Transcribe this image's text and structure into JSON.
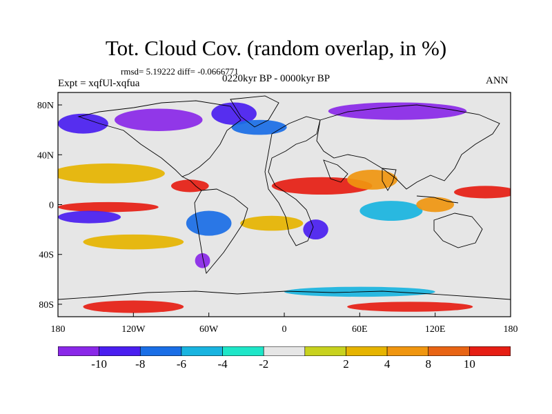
{
  "figure": {
    "title": "Tot. Cloud Cov. (random overlap, in %)",
    "stats": "rmsd= 5.19222 diff= -0.0666771",
    "experiment": "Expt = xqfUl-xqfua",
    "period": "0220kyr BP - 0000kyr BP",
    "season": "ANN"
  },
  "map": {
    "projection": "cylindrical-equidistant",
    "lon_range": [
      -180,
      180
    ],
    "lat_range": [
      -90,
      90
    ],
    "x_ticks": [
      {
        "value": -180,
        "label": "180"
      },
      {
        "value": -120,
        "label": "120W"
      },
      {
        "value": -60,
        "label": "60W"
      },
      {
        "value": 0,
        "label": "0"
      },
      {
        "value": 60,
        "label": "60E"
      },
      {
        "value": 120,
        "label": "120E"
      },
      {
        "value": 180,
        "label": "180"
      }
    ],
    "y_ticks": [
      {
        "value": 80,
        "label": "80N"
      },
      {
        "value": 40,
        "label": "40N"
      },
      {
        "value": 0,
        "label": "0"
      },
      {
        "value": -40,
        "label": "40S"
      },
      {
        "value": -80,
        "label": "80S"
      }
    ],
    "field_regions": [
      {
        "name": "arctic-canada-negative",
        "lon": -100,
        "lat": 68,
        "rlon": 35,
        "rlat": 9,
        "level": -10
      },
      {
        "name": "greenland-negative",
        "lon": -40,
        "lat": 73,
        "rlon": 18,
        "rlat": 9,
        "level": -8
      },
      {
        "name": "siberia-negative",
        "lon": 90,
        "lat": 75,
        "rlon": 55,
        "rlat": 7,
        "level": -10
      },
      {
        "name": "north-pacific-negative",
        "lon": -160,
        "lat": 65,
        "rlon": 20,
        "rlat": 8,
        "level": -8
      },
      {
        "name": "north-atlantic-blue",
        "lon": -20,
        "lat": 62,
        "rlon": 22,
        "rlat": 6,
        "level": -6
      },
      {
        "name": "east-pacific-subtropic-positive",
        "lon": -140,
        "lat": 25,
        "rlon": 45,
        "rlat": 8,
        "level": 4
      },
      {
        "name": "north-africa-positive",
        "lon": 30,
        "lat": 15,
        "rlon": 40,
        "rlat": 7,
        "level": 10
      },
      {
        "name": "arabia-positive",
        "lon": 70,
        "lat": 20,
        "rlon": 20,
        "rlat": 8,
        "level": 8
      },
      {
        "name": "caribbean-positive",
        "lon": -75,
        "lat": 15,
        "rlon": 15,
        "rlat": 5,
        "level": 10
      },
      {
        "name": "west-pacific-positive",
        "lon": 160,
        "lat": 10,
        "rlon": 25,
        "rlat": 5,
        "level": 10
      },
      {
        "name": "equatorial-pacific-positive",
        "lon": -140,
        "lat": -2,
        "rlon": 40,
        "rlat": 4,
        "level": 10
      },
      {
        "name": "equatorial-pacific-south-negative",
        "lon": -155,
        "lat": -10,
        "rlon": 25,
        "rlat": 5,
        "level": -8
      },
      {
        "name": "south-america-negative",
        "lon": -60,
        "lat": -15,
        "rlon": 18,
        "rlat": 10,
        "level": -6
      },
      {
        "name": "southern-africa-negative",
        "lon": 25,
        "lat": -20,
        "rlon": 10,
        "rlat": 8,
        "level": -8
      },
      {
        "name": "indian-ocean-negative",
        "lon": 85,
        "lat": -5,
        "rlon": 25,
        "rlat": 8,
        "level": -4
      },
      {
        "name": "south-pacific-positive",
        "lon": -120,
        "lat": -30,
        "rlon": 40,
        "rlat": 6,
        "level": 4
      },
      {
        "name": "south-atlantic-positive",
        "lon": -10,
        "lat": -15,
        "rlon": 25,
        "rlat": 6,
        "level": 4
      },
      {
        "name": "indonesia-positive",
        "lon": 120,
        "lat": 0,
        "rlon": 15,
        "rlat": 6,
        "level": 8
      },
      {
        "name": "southern-ocean-negative",
        "lon": 60,
        "lat": -70,
        "rlon": 60,
        "rlat": 4,
        "level": -4
      },
      {
        "name": "antarctic-margin-positive",
        "lon": -120,
        "lat": -82,
        "rlon": 40,
        "rlat": 5,
        "level": 10
      },
      {
        "name": "antarctic-margin-positive-east",
        "lon": 100,
        "lat": -82,
        "rlon": 50,
        "rlat": 4,
        "level": 10
      },
      {
        "name": "south-america-south-negative",
        "lon": -65,
        "lat": -45,
        "rlon": 6,
        "rlat": 6,
        "level": -10
      }
    ]
  },
  "colorbar": {
    "colors": [
      "#8a28e8",
      "#4a1ef0",
      "#1a6ee6",
      "#19b4e0",
      "#1ee6c8",
      "#e6e6e6",
      "#c8d21e",
      "#e6b400",
      "#f09610",
      "#e86414",
      "#e61e14"
    ],
    "labels": [
      "-10",
      "-8",
      "-6",
      "-4",
      "-2",
      "2",
      "4",
      "8",
      "10"
    ]
  }
}
